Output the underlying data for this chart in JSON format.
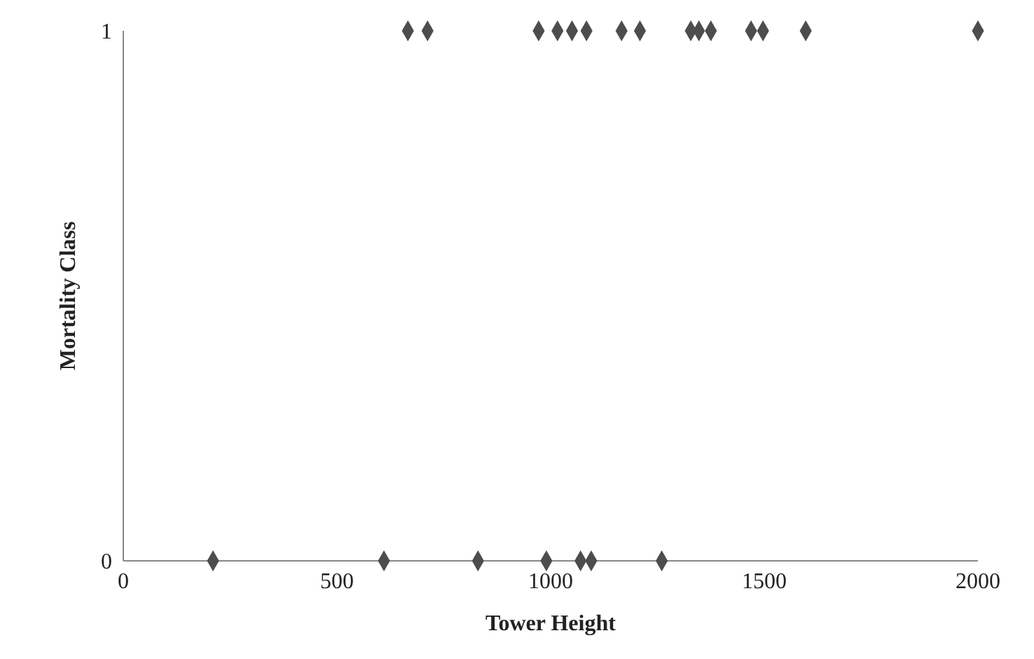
{
  "chart_data": {
    "type": "scatter",
    "xlabel": "Tower Height",
    "ylabel": "Mortality Class",
    "series": [
      {
        "color": "#4d4d4d",
        "x": [
          666,
          712,
          972,
          1016,
          1050,
          1084,
          1166,
          1209,
          1328,
          1347,
          1375,
          1469,
          1497,
          1597,
          2000,
          210,
          610,
          830,
          990,
          1070,
          1095,
          1260
        ],
        "values": [
          1,
          1,
          1,
          1,
          1,
          1,
          1,
          1,
          1,
          1,
          1,
          1,
          1,
          1,
          1,
          0,
          0,
          0,
          0,
          0,
          0,
          0
        ]
      }
    ],
    "xlim": [
      0,
      2000
    ],
    "xticks": [
      0,
      500,
      1000,
      1500,
      2000
    ],
    "ylim": [
      0,
      1
    ],
    "yticks": [
      0,
      1
    ],
    "marker": "diamond",
    "grid": false,
    "legend": false
  }
}
